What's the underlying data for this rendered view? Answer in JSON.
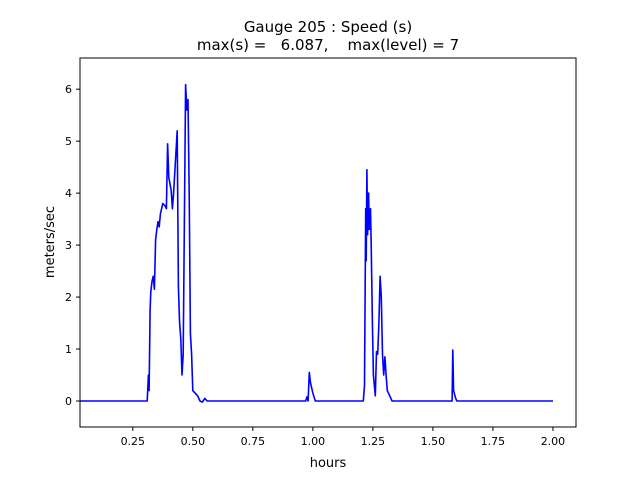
{
  "chart_data": {
    "type": "line",
    "title": "Gauge 205 : Speed (s)",
    "subtitle": "max(s) =   6.087,    max(level) = 7",
    "xlabel": "hours",
    "ylabel": "meters/sec",
    "xlim": [
      0.03,
      2.096
    ],
    "ylim": [
      -0.5,
      6.6
    ],
    "xticks": [
      0.25,
      0.5,
      0.75,
      1.0,
      1.25,
      1.5,
      1.75,
      2.0
    ],
    "xtick_labels": [
      "0.25",
      "0.50",
      "0.75",
      "1.00",
      "1.25",
      "1.50",
      "1.75",
      "2.00"
    ],
    "yticks": [
      0,
      1,
      2,
      3,
      4,
      5,
      6
    ],
    "ytick_labels": [
      "0",
      "1",
      "2",
      "3",
      "4",
      "5",
      "6"
    ],
    "grid": false,
    "line_color": "#0000ff",
    "x": [
      0.03,
      0.31,
      0.315,
      0.318,
      0.322,
      0.325,
      0.33,
      0.335,
      0.34,
      0.345,
      0.35,
      0.355,
      0.36,
      0.365,
      0.375,
      0.385,
      0.39,
      0.395,
      0.4,
      0.41,
      0.415,
      0.42,
      0.43,
      0.435,
      0.44,
      0.445,
      0.45,
      0.455,
      0.46,
      0.47,
      0.475,
      0.48,
      0.485,
      0.49,
      0.495,
      0.5,
      0.52,
      0.53,
      0.54,
      0.55,
      0.56,
      0.97,
      0.975,
      0.98,
      0.985,
      0.99,
      1.0,
      1.01,
      1.21,
      1.215,
      1.22,
      1.222,
      1.225,
      1.228,
      1.232,
      1.235,
      1.24,
      1.243,
      1.248,
      1.252,
      1.26,
      1.265,
      1.27,
      1.275,
      1.28,
      1.285,
      1.29,
      1.295,
      1.3,
      1.305,
      1.31,
      1.32,
      1.33,
      1.58,
      1.583,
      1.586,
      1.595,
      1.6,
      2.0
    ],
    "y": [
      0,
      0,
      0.5,
      0.2,
      1.75,
      2.1,
      2.3,
      2.4,
      2.15,
      3.1,
      3.3,
      3.45,
      3.35,
      3.6,
      3.8,
      3.75,
      3.7,
      4.95,
      4.3,
      4.05,
      3.7,
      4.0,
      4.8,
      5.2,
      2.2,
      1.5,
      1.2,
      0.5,
      0.9,
      6.087,
      5.6,
      5.8,
      4.0,
      1.3,
      0.9,
      0.2,
      0.1,
      0.0,
      -0.02,
      0.05,
      0,
      0,
      0.08,
      0,
      0.55,
      0.35,
      0.15,
      0,
      0,
      0.3,
      3.7,
      2.7,
      4.45,
      3.2,
      4.0,
      3.3,
      3.7,
      3.0,
      1.5,
      0.5,
      0.1,
      0.95,
      0.9,
      1.5,
      2.4,
      2.0,
      0.9,
      0.5,
      0.85,
      0.5,
      0.2,
      0.1,
      0,
      0,
      0.98,
      0.2,
      0.05,
      0,
      0
    ]
  }
}
